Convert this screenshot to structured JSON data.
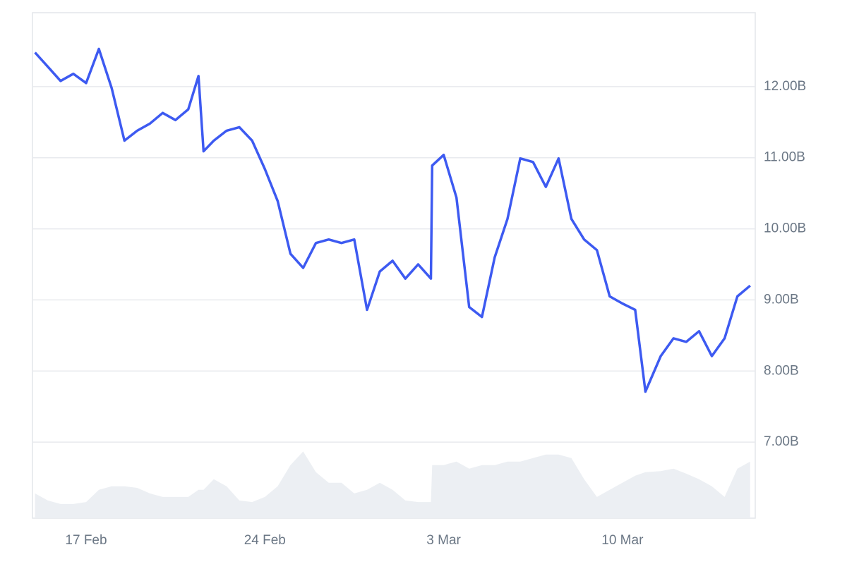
{
  "chart_data": {
    "type": "line",
    "x": [
      15,
      15.5,
      16,
      16.5,
      17,
      17.5,
      18,
      18.5,
      19,
      19.5,
      20,
      20.5,
      21,
      21.4,
      21.6,
      22,
      22.5,
      23,
      23.5,
      24,
      24.5,
      25,
      25.5,
      26,
      26.5,
      27,
      27.5,
      28,
      28.5,
      29,
      29.5,
      30,
      30.5,
      30.55,
      31,
      31.5,
      32,
      32.5,
      33,
      33.5,
      34,
      34.5,
      35,
      35.5,
      36,
      36.5,
      37,
      37.5,
      38,
      38.5,
      38.9,
      39.5,
      40,
      40.5,
      41,
      41.5,
      42,
      42.5,
      43
    ],
    "series": [
      {
        "color": "#3d5af1",
        "values": [
          12.48,
          12.28,
          12.08,
          12.18,
          12.05,
          12.53,
          11.98,
          11.24,
          11.38,
          11.48,
          11.63,
          11.53,
          11.68,
          12.15,
          11.09,
          11.24,
          11.38,
          11.43,
          11.24,
          10.84,
          10.39,
          9.65,
          9.45,
          9.8,
          9.85,
          9.8,
          9.85,
          8.86,
          9.4,
          9.55,
          9.3,
          9.5,
          9.3,
          10.89,
          11.04,
          10.44,
          8.9,
          8.76,
          9.6,
          10.14,
          10.99,
          10.94,
          10.59,
          10.99,
          10.14,
          9.85,
          9.7,
          9.05,
          8.95,
          8.86,
          7.71,
          8.21,
          8.46,
          8.41,
          8.56,
          8.21,
          8.46,
          9.05,
          9.2
        ]
      },
      {
        "color": "#eceff3",
        "axis": "y2",
        "fill": true,
        "values": [
          4.9,
          3.5,
          2.8,
          2.8,
          3.2,
          5.6,
          6.3,
          6.3,
          6.0,
          4.9,
          4.2,
          4.2,
          4.2,
          5.6,
          5.6,
          7.7,
          6.3,
          3.5,
          3.2,
          4.2,
          6.3,
          10.5,
          13.2,
          9.1,
          7.0,
          7.0,
          4.9,
          5.6,
          7.0,
          5.6,
          3.5,
          3.2,
          3.2,
          10.5,
          10.5,
          11.2,
          9.8,
          10.5,
          10.5,
          11.2,
          11.2,
          11.9,
          12.6,
          12.6,
          11.9,
          7.7,
          4.2,
          5.6,
          7.0,
          8.4,
          9.1,
          9.3,
          9.8,
          8.8,
          7.7,
          6.3,
          4.2,
          9.8,
          11.2
        ]
      }
    ],
    "xlim": [
      14.9,
      43.2
    ],
    "xticks": [
      {
        "value": 17,
        "label": "17 Feb"
      },
      {
        "value": 24,
        "label": "24 Feb"
      },
      {
        "value": 31,
        "label": "3 Mar"
      },
      {
        "value": 38,
        "label": "10 Mar"
      }
    ],
    "ylim": [
      5.93,
      13.04
    ],
    "yticks": [
      {
        "value": 7,
        "label": "7.00B"
      },
      {
        "value": 8,
        "label": "8.00B"
      },
      {
        "value": 9,
        "label": "9.00B"
      },
      {
        "value": 10,
        "label": "10.00B"
      },
      {
        "value": 11,
        "label": "11.00B"
      },
      {
        "value": 12,
        "label": "12.00B"
      }
    ],
    "y2lim": [
      0,
      100
    ],
    "grid": true
  }
}
